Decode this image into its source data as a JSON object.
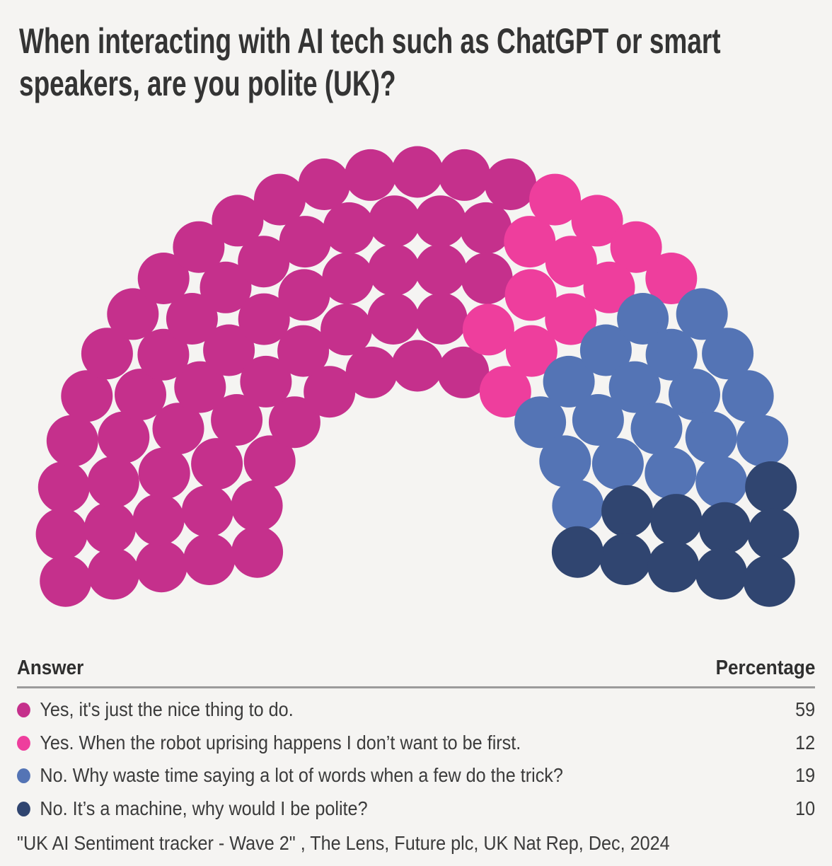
{
  "title": "When interacting with AI tech such as ChatGPT or smart speakers, are you polite (UK)?",
  "chart_data": {
    "type": "parliament",
    "total_seats": 100,
    "layout": {
      "rows": 5,
      "row_counts": [
        13,
        16,
        20,
        24,
        27
      ],
      "arc_start_deg": 188.6,
      "arc_end_deg": -8.6,
      "legend_position": "table-below"
    },
    "series": [
      {
        "label": "Yes, it's just the nice thing to do.",
        "value": 59,
        "color": "#C5308C"
      },
      {
        "label": "Yes. When the robot uprising happens I don’t want to be first.",
        "value": 12,
        "color": "#EE3E9D"
      },
      {
        "label": "No. Why waste time saying a lot of words when a few do the trick?",
        "value": 19,
        "color": "#5474B5"
      },
      {
        "label": "No. It’s a machine, why would I be polite?",
        "value": 10,
        "color": "#304570"
      }
    ]
  },
  "table": {
    "answer_header": "Answer",
    "percentage_header": "Percentage"
  },
  "source": "\"UK AI Sentiment tracker - Wave 2\" , The Lens, Future plc, UK Nat Rep, Dec, 2024"
}
